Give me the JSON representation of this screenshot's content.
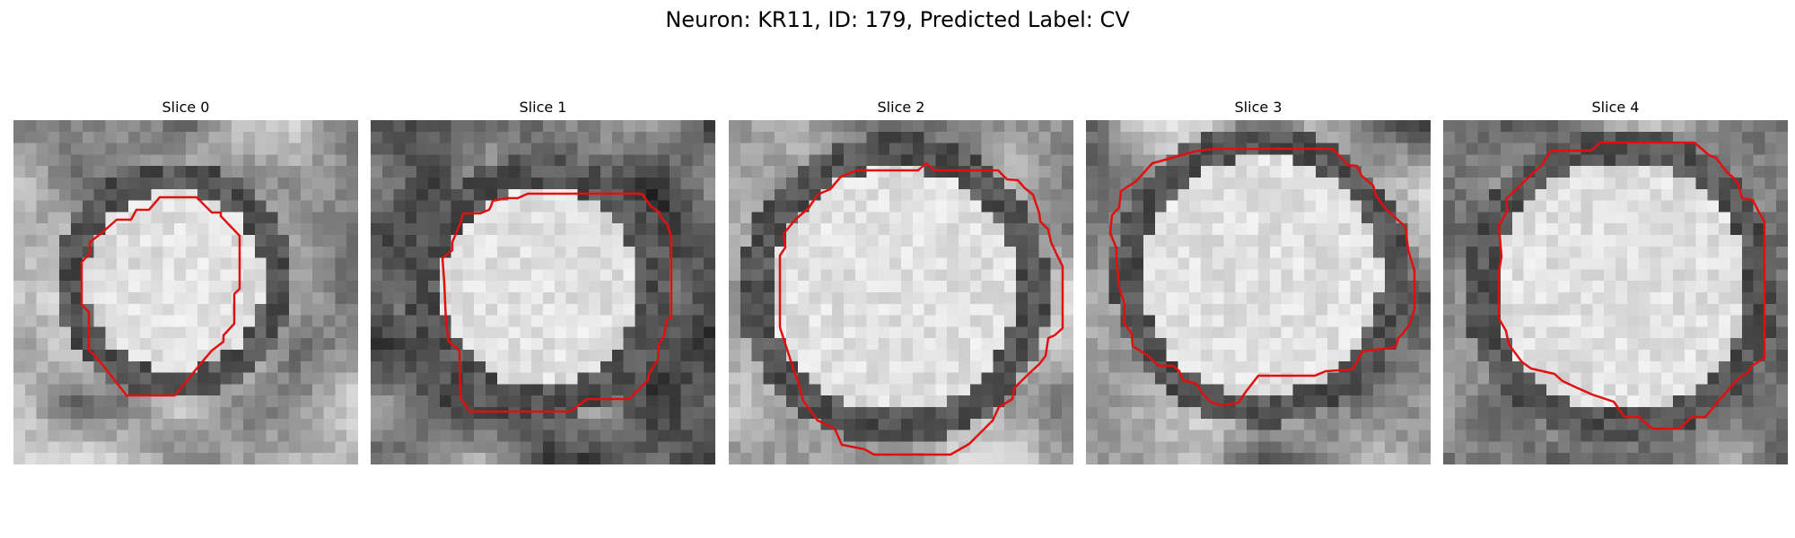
{
  "figure": {
    "title": "Neuron: KR11, ID: 179, Predicted Label: CV"
  },
  "colors": {
    "contour": "#e01010",
    "background": "#ffffff"
  },
  "panels": [
    {
      "title": "Slice 0",
      "image": "grayscale-microscopy-slice",
      "overlay": "red-cell-boundary-contour"
    },
    {
      "title": "Slice 1",
      "image": "grayscale-microscopy-slice",
      "overlay": "red-cell-boundary-contour"
    },
    {
      "title": "Slice 2",
      "image": "grayscale-microscopy-slice",
      "overlay": "red-cell-boundary-contour"
    },
    {
      "title": "Slice 3",
      "image": "grayscale-microscopy-slice",
      "overlay": "red-cell-boundary-contour"
    },
    {
      "title": "Slice 4",
      "image": "grayscale-microscopy-slice",
      "overlay": "red-cell-boundary-contour"
    }
  ]
}
